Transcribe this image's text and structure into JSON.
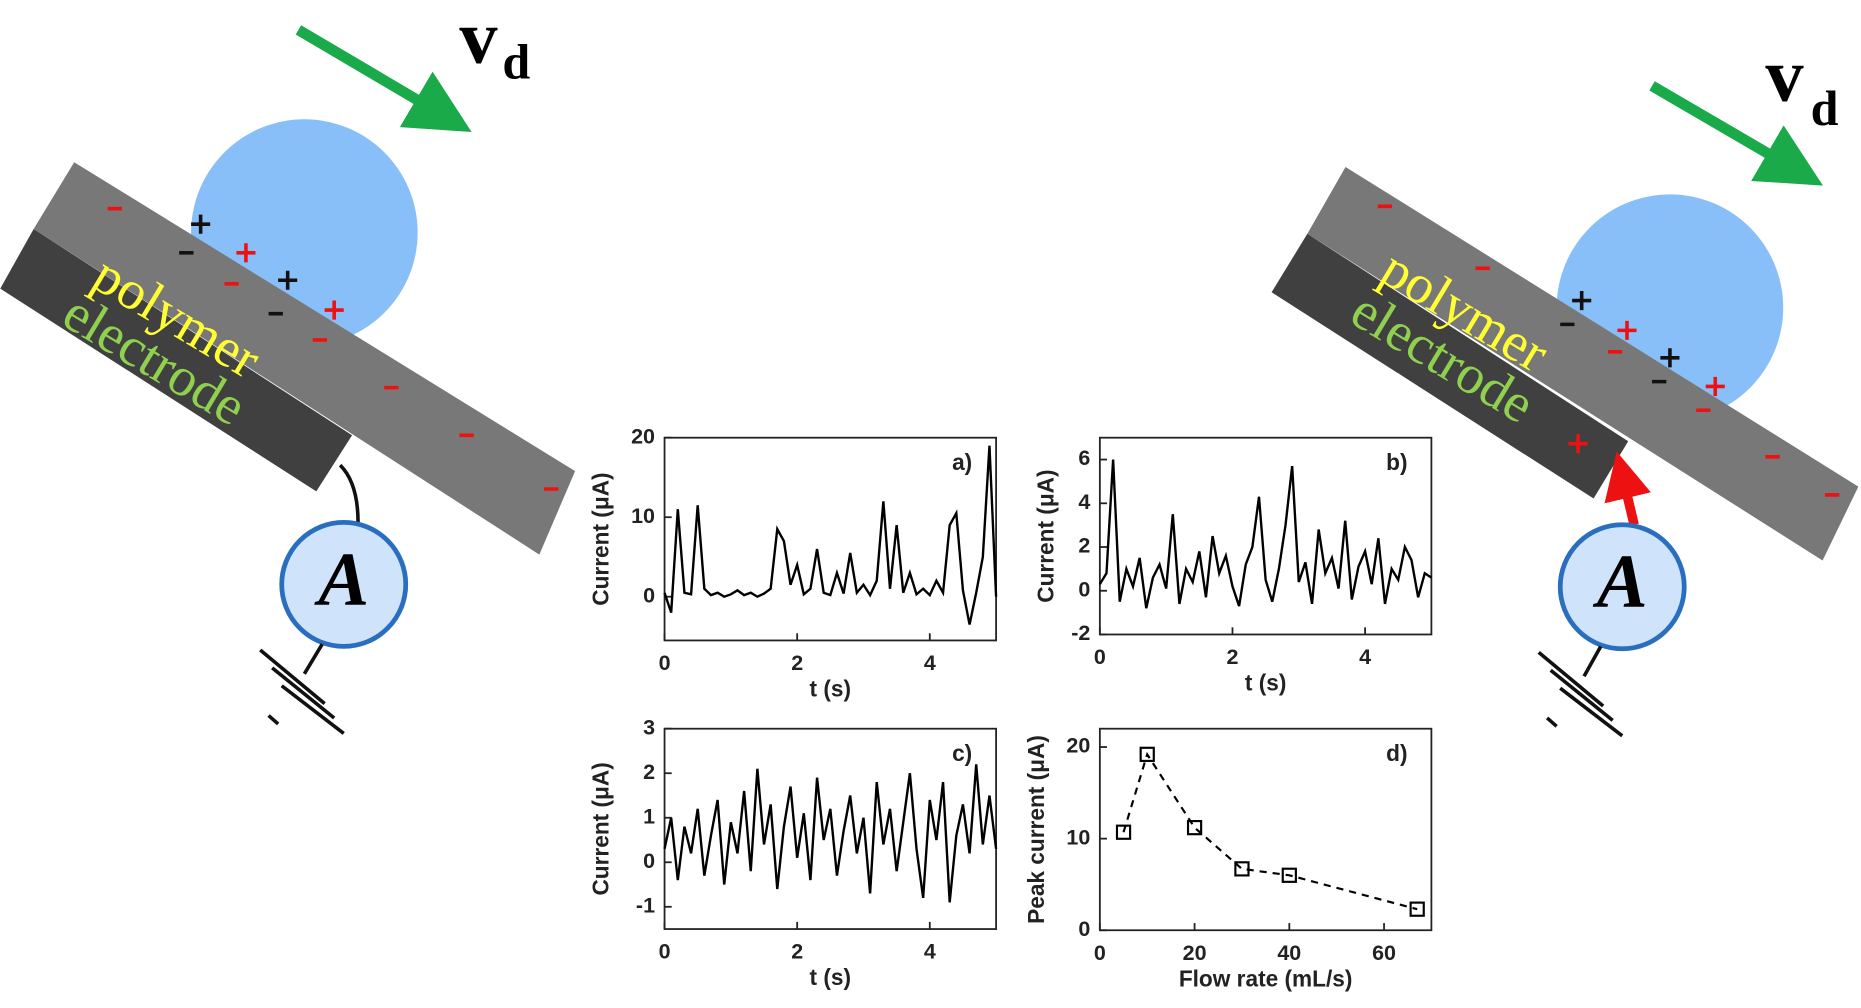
{
  "diagrams": {
    "left": {
      "velocity": "v",
      "velocity_subscript": "d",
      "layer_top": "polymer",
      "layer_bottom": "electrode",
      "meter": "A"
    },
    "right": {
      "velocity": "v",
      "velocity_subscript": "d",
      "layer_top": "polymer",
      "layer_bottom": "electrode",
      "meter": "A"
    }
  },
  "chart_data": [
    {
      "type": "line",
      "panel_label": "a)",
      "xlabel": "t (s)",
      "ylabel": "Current (μA)",
      "color": "#000000",
      "x": [
        0,
        0.1,
        0.2,
        0.3,
        0.4,
        0.5,
        0.6,
        0.7,
        0.8,
        0.9,
        1,
        1.1,
        1.2,
        1.3,
        1.4,
        1.5,
        1.6,
        1.7,
        1.8,
        1.9,
        2,
        2.1,
        2.2,
        2.3,
        2.4,
        2.5,
        2.6,
        2.7,
        2.8,
        2.9,
        3,
        3.1,
        3.2,
        3.3,
        3.4,
        3.5,
        3.6,
        3.7,
        3.8,
        3.9,
        4,
        4.1,
        4.2,
        4.3,
        4.4,
        4.5,
        4.6,
        4.7,
        4.8,
        4.9,
        5
      ],
      "values": [
        0.5,
        -2,
        11,
        0.5,
        0.3,
        11.5,
        1,
        0.2,
        0.5,
        0,
        0.3,
        0.8,
        0.2,
        0.5,
        0,
        0.4,
        1,
        8.5,
        7,
        1.5,
        4,
        0.3,
        1,
        6,
        0.5,
        0.2,
        3,
        0.4,
        5.5,
        0.5,
        1.5,
        0.2,
        2,
        12,
        1,
        9,
        0.5,
        3,
        0.3,
        1,
        0.2,
        2,
        0.5,
        9,
        10.5,
        0.8,
        -3.5,
        0.5,
        5,
        19,
        0
      ],
      "xlim": [
        0,
        5
      ],
      "xticks": [
        0,
        2,
        4
      ],
      "ylim": [
        -5.5,
        20
      ],
      "yticks": [
        0,
        10,
        20
      ]
    },
    {
      "type": "line",
      "panel_label": "b)",
      "xlabel": "t (s)",
      "ylabel": "Current (μA)",
      "color": "#000000",
      "x": [
        0,
        0.1,
        0.2,
        0.3,
        0.4,
        0.5,
        0.6,
        0.7,
        0.8,
        0.9,
        1,
        1.1,
        1.2,
        1.3,
        1.4,
        1.5,
        1.6,
        1.7,
        1.8,
        1.9,
        2,
        2.1,
        2.2,
        2.3,
        2.4,
        2.5,
        2.6,
        2.7,
        2.8,
        2.9,
        3,
        3.1,
        3.2,
        3.3,
        3.4,
        3.5,
        3.6,
        3.7,
        3.8,
        3.9,
        4,
        4.1,
        4.2,
        4.3,
        4.4,
        4.5,
        4.6,
        4.7,
        4.8,
        4.9,
        5
      ],
      "values": [
        0.3,
        0.8,
        6,
        -0.5,
        1,
        0.2,
        1.5,
        -0.8,
        0.6,
        1.2,
        0.1,
        3.5,
        -0.6,
        1,
        0.4,
        1.8,
        -0.3,
        2.5,
        0.8,
        1.6,
        0.2,
        -0.7,
        1.2,
        2,
        4.3,
        0.5,
        -0.5,
        1,
        3,
        5.7,
        0.4,
        1.3,
        -0.6,
        2.8,
        0.8,
        1.5,
        0.1,
        3.2,
        -0.4,
        1.1,
        1.8,
        0.3,
        2.4,
        -0.6,
        1,
        0.5,
        2,
        1.4,
        -0.3,
        0.8,
        0.6
      ],
      "xlim": [
        0,
        5
      ],
      "xticks": [
        0,
        2,
        4
      ],
      "ylim": [
        -2,
        7
      ],
      "yticks": [
        -2,
        0,
        2,
        4,
        6
      ]
    },
    {
      "type": "line",
      "panel_label": "c)",
      "xlabel": "t (s)",
      "ylabel": "Current (μA)",
      "color": "#000000",
      "x": [
        0,
        0.1,
        0.2,
        0.3,
        0.4,
        0.5,
        0.6,
        0.7,
        0.8,
        0.9,
        1,
        1.1,
        1.2,
        1.3,
        1.4,
        1.5,
        1.6,
        1.7,
        1.8,
        1.9,
        2,
        2.1,
        2.2,
        2.3,
        2.4,
        2.5,
        2.6,
        2.7,
        2.8,
        2.9,
        3,
        3.1,
        3.2,
        3.3,
        3.4,
        3.5,
        3.6,
        3.7,
        3.8,
        3.9,
        4,
        4.1,
        4.2,
        4.3,
        4.4,
        4.5,
        4.6,
        4.7,
        4.8,
        4.9,
        5
      ],
      "values": [
        0.3,
        1,
        -0.4,
        0.8,
        0.2,
        1.2,
        -0.3,
        0.6,
        1.4,
        -0.5,
        0.9,
        0.2,
        1.6,
        -0.2,
        2.1,
        0.4,
        1.3,
        -0.6,
        0.8,
        1.7,
        0.1,
        1.1,
        -0.4,
        1.9,
        0.5,
        1.2,
        -0.3,
        0.7,
        1.5,
        0.2,
        1,
        -0.7,
        1.8,
        0.4,
        1.2,
        -0.2,
        0.9,
        2,
        0.3,
        -0.8,
        1.4,
        0.5,
        1.8,
        -0.9,
        0.6,
        1.3,
        0.2,
        2.2,
        0.4,
        1.5,
        0.3
      ],
      "xlim": [
        0,
        5
      ],
      "xticks": [
        0,
        2,
        4
      ],
      "ylim": [
        -1.5,
        3
      ],
      "yticks": [
        -1,
        0,
        1,
        2,
        3
      ]
    },
    {
      "type": "line",
      "panel_label": "d)",
      "xlabel": "Flow rate (mL/s)",
      "ylabel": "Peak current (μA)",
      "color": "#000000",
      "marker": "square",
      "line_style": "dashed",
      "x": [
        5,
        10,
        20,
        30,
        40,
        67
      ],
      "values": [
        10.7,
        19.2,
        11.2,
        6.7,
        6,
        2.3
      ],
      "xlim": [
        0,
        70
      ],
      "xticks": [
        0,
        20,
        40,
        60
      ],
      "ylim": [
        0,
        22
      ],
      "yticks": [
        0,
        10,
        20
      ]
    }
  ]
}
